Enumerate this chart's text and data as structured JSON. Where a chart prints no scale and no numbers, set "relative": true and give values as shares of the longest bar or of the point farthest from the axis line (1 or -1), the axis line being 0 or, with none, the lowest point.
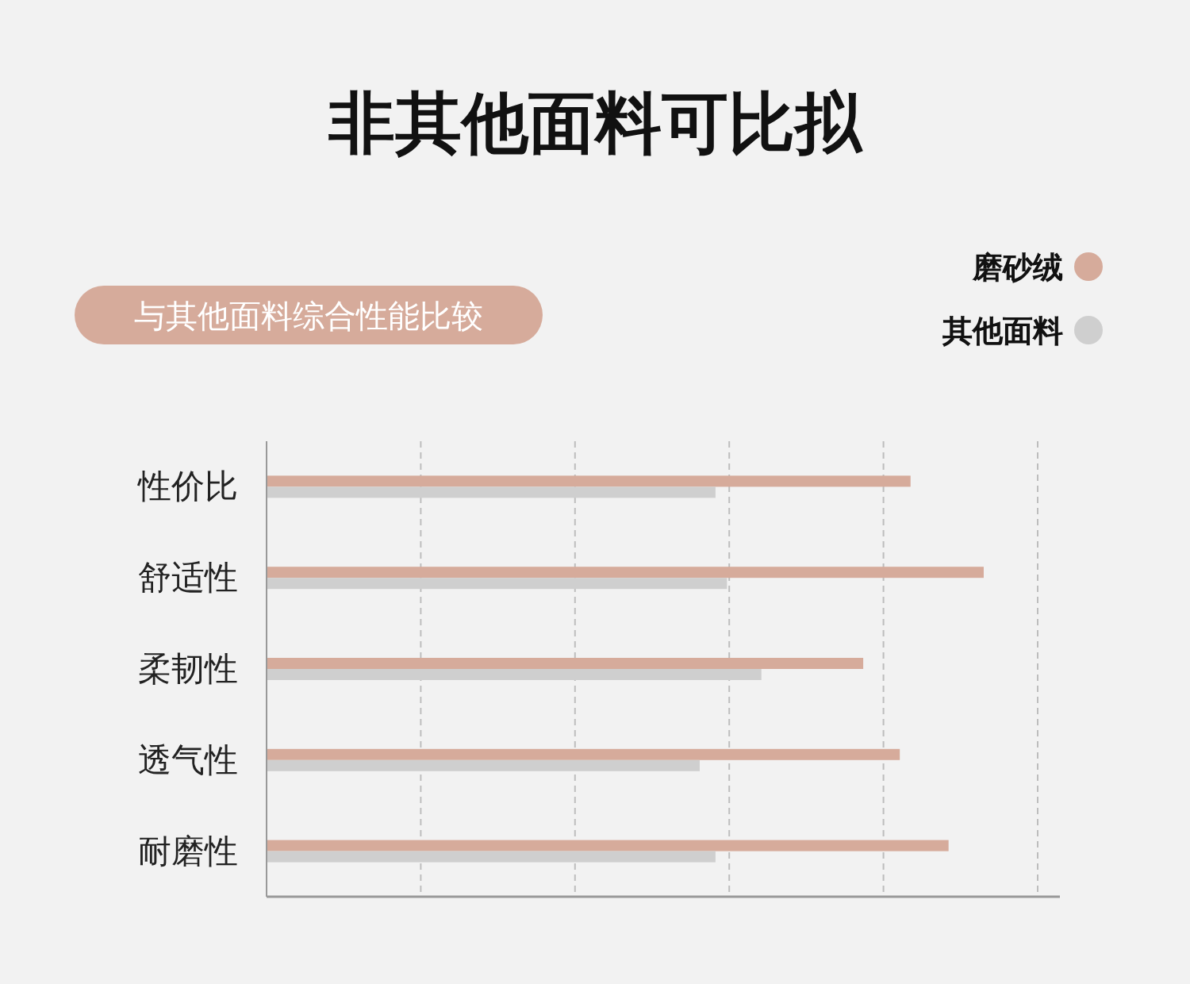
{
  "chart_data": {
    "type": "bar",
    "orientation": "horizontal",
    "relative": true,
    "title": "非其他面料可比拟",
    "subtitle": "与其他面料综合性能比较",
    "categories": [
      "性价比",
      "舒适性",
      "柔韧性",
      "透气性",
      "耐磨性"
    ],
    "series": [
      {
        "name": "磨砂绒",
        "color": "#d6ab9b",
        "values": [
          0.898,
          1,
          0.832,
          0.883,
          0.951
        ]
      },
      {
        "name": "其他面料",
        "color": "#cfcfcf",
        "values": [
          0.626,
          0.642,
          0.69,
          0.604,
          0.626
        ]
      }
    ],
    "grid": "x",
    "legend": "top right"
  }
}
